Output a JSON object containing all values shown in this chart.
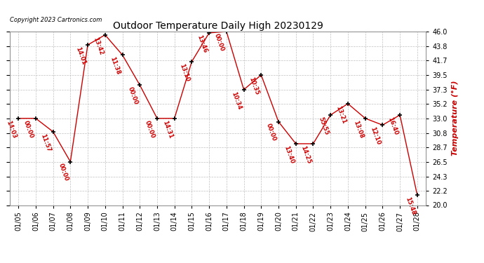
{
  "title": "Outdoor Temperature Daily High 20230129",
  "copyright": "Copyright 2023 Cartronics.com",
  "ylabel": "Temperature (°F)",
  "background_color": "#ffffff",
  "line_color": "#cc0000",
  "marker_color": "#000000",
  "grid_color": "#c0c0c0",
  "ylim": [
    20.0,
    46.0
  ],
  "yticks": [
    20.0,
    22.2,
    24.3,
    26.5,
    28.7,
    30.8,
    33.0,
    35.2,
    37.3,
    39.5,
    41.7,
    43.8,
    46.0
  ],
  "dates": [
    "01/05",
    "01/06",
    "01/07",
    "01/08",
    "01/09",
    "01/10",
    "01/11",
    "01/12",
    "01/13",
    "01/14",
    "01/15",
    "01/16",
    "01/17",
    "01/18",
    "01/19",
    "01/20",
    "01/21",
    "01/22",
    "01/23",
    "01/24",
    "01/25",
    "01/26",
    "01/27",
    "01/28"
  ],
  "values": [
    33.0,
    33.0,
    31.0,
    26.5,
    44.0,
    45.5,
    42.5,
    38.0,
    33.0,
    33.0,
    41.5,
    45.8,
    46.0,
    37.3,
    39.5,
    32.5,
    29.2,
    29.2,
    33.5,
    35.2,
    33.0,
    32.0,
    33.5,
    21.5
  ],
  "annotations": [
    {
      "idx": 0,
      "time": "14:03"
    },
    {
      "idx": 1,
      "time": "00:00"
    },
    {
      "idx": 2,
      "time": "11:57"
    },
    {
      "idx": 3,
      "time": "00:00"
    },
    {
      "idx": 4,
      "time": "14:01"
    },
    {
      "idx": 5,
      "time": "13:42"
    },
    {
      "idx": 6,
      "time": "11:38"
    },
    {
      "idx": 7,
      "time": "00:00"
    },
    {
      "idx": 8,
      "time": "00:00"
    },
    {
      "idx": 9,
      "time": "14:31"
    },
    {
      "idx": 10,
      "time": "13:10"
    },
    {
      "idx": 11,
      "time": "13:46"
    },
    {
      "idx": 12,
      "time": "00:00"
    },
    {
      "idx": 13,
      "time": "10:34"
    },
    {
      "idx": 14,
      "time": "10:35"
    },
    {
      "idx": 15,
      "time": "00:00"
    },
    {
      "idx": 16,
      "time": "13:40"
    },
    {
      "idx": 17,
      "time": "14:25"
    },
    {
      "idx": 18,
      "time": "55:55"
    },
    {
      "idx": 19,
      "time": "13:21"
    },
    {
      "idx": 20,
      "time": "13:08"
    },
    {
      "idx": 21,
      "time": "12:10"
    },
    {
      "idx": 22,
      "time": "16:40"
    },
    {
      "idx": 23,
      "time": "15:48"
    }
  ],
  "figsize": [
    6.9,
    3.75
  ],
  "dpi": 100
}
